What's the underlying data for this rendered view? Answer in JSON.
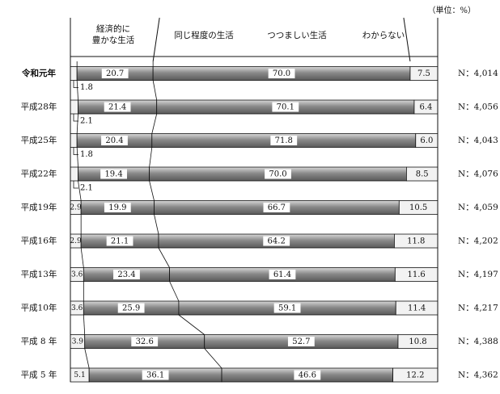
{
  "unit_label": "（単位：%）",
  "chart_data": {
    "type": "bar",
    "stacked": true,
    "orientation": "horizontal",
    "xlim": [
      0,
      100
    ],
    "grid": false,
    "legend_position": "top",
    "series_names": [
      "経済的に豊かな生活",
      "同じ程度の生活",
      "つつましい生活",
      "わからない"
    ],
    "rows": [
      {
        "label": "令和元年",
        "bold": true,
        "values": [
          1.8,
          20.7,
          70.0,
          7.5
        ],
        "value_labels": [
          "1.8",
          "20.7",
          "70.0",
          "7.5"
        ],
        "n_label": "N：4,014",
        "small_outside": true
      },
      {
        "label": "平成28年",
        "bold": false,
        "values": [
          2.1,
          21.4,
          70.1,
          6.4
        ],
        "value_labels": [
          "2.1",
          "21.4",
          "70.1",
          "6.4"
        ],
        "n_label": "N：4,056",
        "small_outside": true
      },
      {
        "label": "平成25年",
        "bold": false,
        "values": [
          1.8,
          20.4,
          71.8,
          6.0
        ],
        "value_labels": [
          "1.8",
          "20.4",
          "71.8",
          "6.0"
        ],
        "n_label": "N：4,043",
        "small_outside": true
      },
      {
        "label": "平成22年",
        "bold": false,
        "values": [
          2.1,
          19.4,
          70.0,
          8.5
        ],
        "value_labels": [
          "2.1",
          "19.4",
          "70.0",
          "8.5"
        ],
        "n_label": "N：4,076",
        "small_outside": true
      },
      {
        "label": "平成19年",
        "bold": false,
        "values": [
          2.9,
          19.9,
          66.7,
          10.5
        ],
        "value_labels": [
          "2.9",
          "19.9",
          "66.7",
          "10.5"
        ],
        "n_label": "N：4,059",
        "small_outside": false
      },
      {
        "label": "平成16年",
        "bold": false,
        "values": [
          2.9,
          21.1,
          64.2,
          11.8
        ],
        "value_labels": [
          "2.9",
          "21.1",
          "64.2",
          "11.8"
        ],
        "n_label": "N：4,202",
        "small_outside": false
      },
      {
        "label": "平成13年",
        "bold": false,
        "values": [
          3.6,
          23.4,
          61.4,
          11.6
        ],
        "value_labels": [
          "3.6",
          "23.4",
          "61.4",
          "11.6"
        ],
        "n_label": "N：4,197",
        "small_outside": false
      },
      {
        "label": "平成10年",
        "bold": false,
        "values": [
          3.6,
          25.9,
          59.1,
          11.4
        ],
        "value_labels": [
          "3.6",
          "25.9",
          "59.1",
          "11.4"
        ],
        "n_label": "N：4,217",
        "small_outside": false
      },
      {
        "label": "平成 8 年",
        "bold": false,
        "values": [
          3.9,
          32.6,
          52.7,
          10.8
        ],
        "value_labels": [
          "3.9",
          "32.6",
          "52.7",
          "10.8"
        ],
        "n_label": "N：4,388",
        "small_outside": false
      },
      {
        "label": "平成 5 年",
        "bold": false,
        "values": [
          5.1,
          36.1,
          46.6,
          12.2
        ],
        "value_labels": [
          "5.1",
          "36.1",
          "46.6",
          "12.2"
        ],
        "n_label": "N：4,362",
        "small_outside": false
      }
    ],
    "colors": {
      "segment_fill": [
        "#f2f2f2",
        "#9a9a9a",
        "#9a9a9a",
        "#f2f2f2"
      ],
      "label_box": "#ffffff",
      "line": "#111111"
    }
  }
}
